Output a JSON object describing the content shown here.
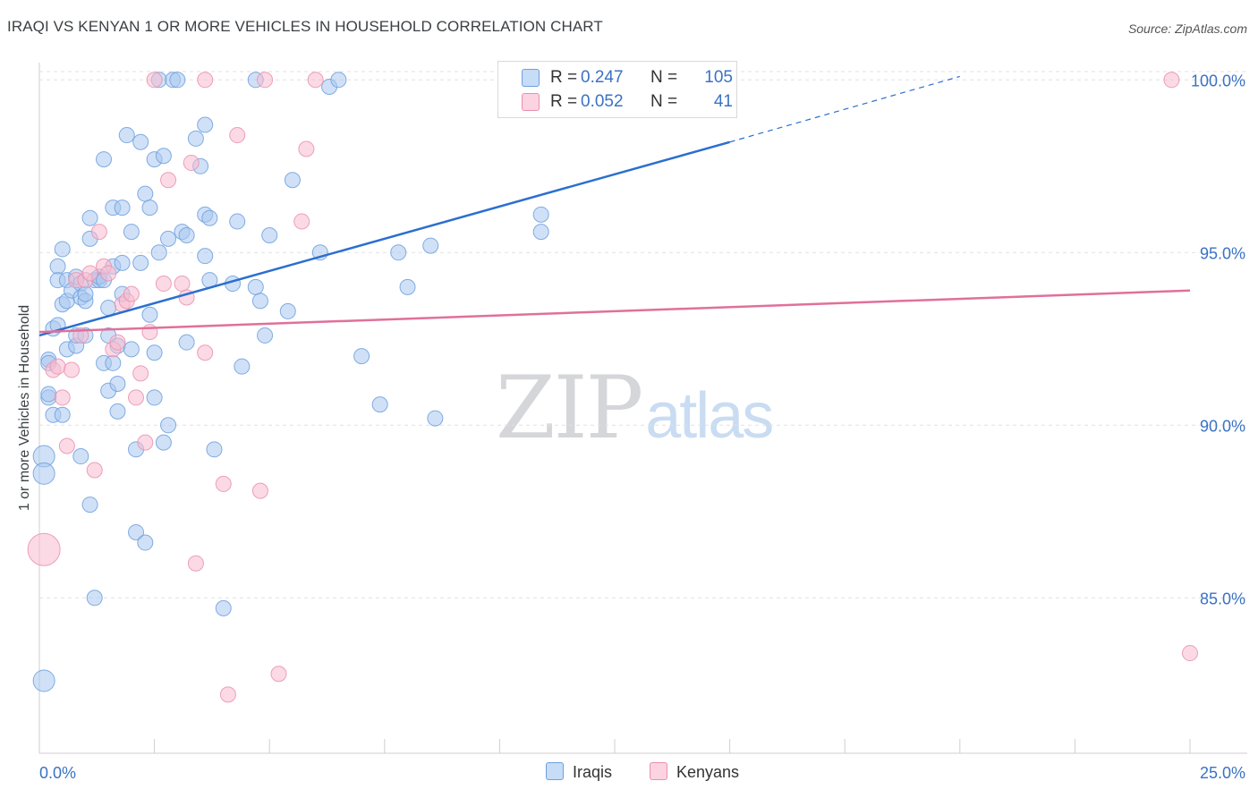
{
  "title": "IRAQI VS KENYAN 1 OR MORE VEHICLES IN HOUSEHOLD CORRELATION CHART",
  "source": "Source: ZipAtlas.com",
  "watermark": {
    "zip": "ZIP",
    "atlas": "atlas"
  },
  "legend": {
    "r_key": "R =",
    "n_key": "N =",
    "rows": [
      {
        "r": "0.247",
        "n": "105",
        "color": "#a9c8f0"
      },
      {
        "r": "0.052",
        "n": "41",
        "color": "#f7bcd0"
      }
    ],
    "bottom": [
      {
        "label": "Iraqis",
        "color": "#a9c8f0"
      },
      {
        "label": "Kenyans",
        "color": "#f7bcd0"
      }
    ]
  },
  "colors": {
    "iraqi_fill": "#a9c8f0",
    "iraqi_stroke": "#6d9fde",
    "iraqi_line": "#2b6fcf",
    "kenyan_fill": "#f7bcd0",
    "kenyan_stroke": "#eb8fae",
    "kenyan_line": "#e0709a",
    "axis_text": "#3a72c4",
    "grid": "#e1e1e1"
  },
  "chart_data": {
    "type": "scatter",
    "title": "IRAQI VS KENYAN 1 OR MORE VEHICLES IN HOUSEHOLD CORRELATION CHART",
    "xlabel": "",
    "ylabel": "1 or more Vehicles in Household",
    "xlim": [
      0,
      25
    ],
    "ylim": [
      80.5,
      100.5
    ],
    "x_tick_labels": [
      "0.0%",
      "25.0%"
    ],
    "y_ticks": [
      85,
      90,
      95,
      100
    ],
    "y_tick_labels": [
      "85.0%",
      "90.0%",
      "95.0%",
      "100.0%"
    ],
    "series": [
      {
        "name": "Iraqis",
        "r": 0.247,
        "n": 105,
        "trend": {
          "x0": 0,
          "y0": 92.6,
          "x1": 15,
          "y1": 98.2,
          "dashed_to_x": 20,
          "dashed_to_y": 100.1
        },
        "points": [
          [
            0.1,
            82.6,
            2
          ],
          [
            0.1,
            89.1,
            2
          ],
          [
            0.1,
            88.6,
            2
          ],
          [
            0.2,
            91.9,
            1
          ],
          [
            0.2,
            91.8,
            1
          ],
          [
            0.2,
            90.8,
            1
          ],
          [
            0.2,
            90.9,
            1
          ],
          [
            0.3,
            90.3,
            1
          ],
          [
            0.3,
            92.8,
            1
          ],
          [
            0.4,
            92.9,
            1
          ],
          [
            0.4,
            94.6,
            1
          ],
          [
            0.4,
            94.2,
            1
          ],
          [
            0.5,
            95.1,
            1
          ],
          [
            0.5,
            93.5,
            1
          ],
          [
            0.5,
            90.3,
            1
          ],
          [
            0.6,
            92.2,
            1
          ],
          [
            0.6,
            94.2,
            1
          ],
          [
            0.6,
            93.6,
            1
          ],
          [
            0.7,
            93.9,
            1
          ],
          [
            0.8,
            94.3,
            1
          ],
          [
            0.8,
            92.3,
            1
          ],
          [
            0.8,
            92.6,
            1
          ],
          [
            0.9,
            94.1,
            1
          ],
          [
            0.9,
            93.7,
            1
          ],
          [
            0.9,
            89.1,
            1
          ],
          [
            1.0,
            93.6,
            1
          ],
          [
            1.0,
            93.8,
            1
          ],
          [
            1.0,
            92.6,
            1
          ],
          [
            1.1,
            87.7,
            1
          ],
          [
            1.1,
            96.0,
            1
          ],
          [
            1.1,
            95.4,
            1
          ],
          [
            1.2,
            94.2,
            1
          ],
          [
            1.2,
            85.0,
            1
          ],
          [
            1.3,
            94.2,
            1
          ],
          [
            1.3,
            94.3,
            1
          ],
          [
            1.4,
            94.2,
            1
          ],
          [
            1.4,
            91.8,
            1
          ],
          [
            1.4,
            97.7,
            1
          ],
          [
            1.5,
            93.4,
            1
          ],
          [
            1.5,
            91.0,
            1
          ],
          [
            1.5,
            92.6,
            1
          ],
          [
            1.6,
            94.6,
            1
          ],
          [
            1.6,
            91.8,
            1
          ],
          [
            1.6,
            96.3,
            1
          ],
          [
            1.7,
            90.4,
            1
          ],
          [
            1.7,
            91.2,
            1
          ],
          [
            1.7,
            92.3,
            1
          ],
          [
            1.8,
            93.8,
            1
          ],
          [
            1.8,
            94.7,
            1
          ],
          [
            1.8,
            96.3,
            1
          ],
          [
            1.9,
            98.4,
            1
          ],
          [
            2.0,
            92.2,
            1
          ],
          [
            2.0,
            95.6,
            1
          ],
          [
            2.1,
            89.3,
            1
          ],
          [
            2.1,
            86.9,
            1
          ],
          [
            2.2,
            98.2,
            1
          ],
          [
            2.2,
            94.7,
            1
          ],
          [
            2.3,
            86.6,
            1
          ],
          [
            2.3,
            96.7,
            1
          ],
          [
            2.4,
            96.3,
            1
          ],
          [
            2.4,
            93.2,
            1
          ],
          [
            2.5,
            97.7,
            1
          ],
          [
            2.5,
            90.8,
            1
          ],
          [
            2.5,
            92.1,
            1
          ],
          [
            2.6,
            95.0,
            1
          ],
          [
            2.6,
            100.0,
            1
          ],
          [
            2.7,
            97.8,
            1
          ],
          [
            2.7,
            89.5,
            1
          ],
          [
            2.8,
            90.0,
            1
          ],
          [
            2.8,
            95.4,
            1
          ],
          [
            2.9,
            100.0,
            1
          ],
          [
            3.0,
            100.0,
            1
          ],
          [
            3.1,
            95.6,
            1
          ],
          [
            3.2,
            95.5,
            1
          ],
          [
            3.2,
            92.4,
            1
          ],
          [
            3.4,
            98.3,
            1
          ],
          [
            3.5,
            97.5,
            1
          ],
          [
            3.6,
            98.7,
            1
          ],
          [
            3.6,
            94.9,
            1
          ],
          [
            3.6,
            96.1,
            1
          ],
          [
            3.7,
            94.2,
            1
          ],
          [
            3.7,
            96.0,
            1
          ],
          [
            3.8,
            89.3,
            1
          ],
          [
            4.0,
            84.7,
            1
          ],
          [
            4.2,
            94.1,
            1
          ],
          [
            4.3,
            95.9,
            1
          ],
          [
            4.4,
            91.7,
            1
          ],
          [
            4.7,
            94.0,
            1
          ],
          [
            4.7,
            100.0,
            1
          ],
          [
            4.8,
            93.6,
            1
          ],
          [
            4.9,
            92.6,
            1
          ],
          [
            5.0,
            95.5,
            1
          ],
          [
            5.4,
            93.3,
            1
          ],
          [
            5.5,
            97.1,
            1
          ],
          [
            6.1,
            95.0,
            1
          ],
          [
            6.3,
            99.8,
            1
          ],
          [
            6.5,
            100.0,
            1
          ],
          [
            7.0,
            92.0,
            1
          ],
          [
            7.4,
            90.6,
            1
          ],
          [
            7.8,
            95.0,
            1
          ],
          [
            8.0,
            94.0,
            1
          ],
          [
            8.5,
            95.2,
            1
          ],
          [
            8.6,
            90.2,
            1
          ],
          [
            10.9,
            95.6,
            1
          ],
          [
            10.9,
            96.1,
            1
          ]
        ]
      },
      {
        "name": "Kenyans",
        "r": 0.052,
        "n": 41,
        "trend": {
          "x0": 0,
          "y0": 92.7,
          "x1": 25,
          "y1": 93.9
        },
        "points": [
          [
            0.1,
            86.4,
            3
          ],
          [
            0.3,
            91.6,
            1
          ],
          [
            0.4,
            91.7,
            1
          ],
          [
            0.5,
            90.8,
            1
          ],
          [
            0.6,
            89.4,
            1
          ],
          [
            0.7,
            91.6,
            1
          ],
          [
            0.8,
            94.2,
            1
          ],
          [
            0.9,
            92.6,
            1
          ],
          [
            1.0,
            94.2,
            1
          ],
          [
            1.1,
            94.4,
            1
          ],
          [
            1.2,
            88.7,
            1
          ],
          [
            1.3,
            95.6,
            1
          ],
          [
            1.4,
            94.6,
            1
          ],
          [
            1.5,
            94.4,
            1
          ],
          [
            1.6,
            92.2,
            1
          ],
          [
            1.7,
            92.4,
            1
          ],
          [
            1.8,
            93.5,
            1
          ],
          [
            1.9,
            93.6,
            1
          ],
          [
            2.0,
            93.8,
            1
          ],
          [
            2.1,
            90.8,
            1
          ],
          [
            2.2,
            91.5,
            1
          ],
          [
            2.3,
            89.5,
            1
          ],
          [
            2.4,
            92.7,
            1
          ],
          [
            2.5,
            100.0,
            1
          ],
          [
            2.7,
            94.1,
            1
          ],
          [
            2.8,
            97.1,
            1
          ],
          [
            3.1,
            94.1,
            1
          ],
          [
            3.2,
            93.7,
            1
          ],
          [
            3.3,
            97.6,
            1
          ],
          [
            3.4,
            86.0,
            1
          ],
          [
            3.6,
            92.1,
            1
          ],
          [
            3.6,
            100.0,
            1
          ],
          [
            4.0,
            88.3,
            1
          ],
          [
            4.1,
            82.2,
            1
          ],
          [
            4.3,
            98.4,
            1
          ],
          [
            4.8,
            88.1,
            1
          ],
          [
            4.9,
            100.0,
            1
          ],
          [
            5.2,
            82.8,
            1
          ],
          [
            5.7,
            95.9,
            1
          ],
          [
            5.8,
            98.0,
            1
          ],
          [
            6.0,
            100.0,
            1
          ],
          [
            24.6,
            100.0,
            1
          ],
          [
            25.0,
            83.4,
            1
          ]
        ]
      }
    ]
  }
}
